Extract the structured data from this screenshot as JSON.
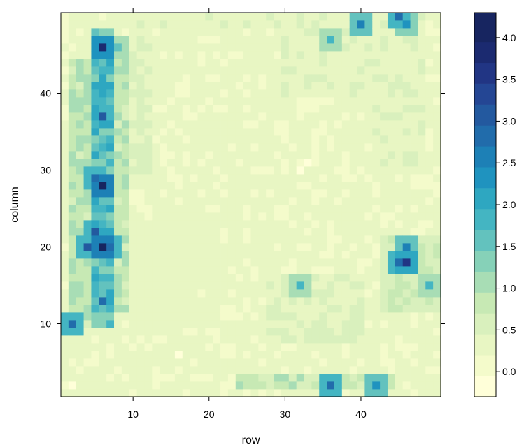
{
  "chart_data": {
    "type": "heatmap",
    "title": "",
    "xlabel": "row",
    "ylabel": "column",
    "xlim": [
      0.5,
      50.5
    ],
    "ylim": [
      0.5,
      50.5
    ],
    "x_ticks": [
      10,
      20,
      30,
      40
    ],
    "y_ticks": [
      10,
      20,
      30,
      40
    ],
    "colorbar": {
      "range": [
        -0.3,
        4.3
      ],
      "ticks": [
        0.0,
        0.5,
        1.0,
        1.5,
        2.0,
        2.5,
        3.0,
        3.5,
        4.0
      ],
      "tick_labels": [
        "0.0",
        "0.5",
        "1.0",
        "1.5",
        "2.0",
        "2.5",
        "3.0",
        "3.5",
        "4.0"
      ],
      "breaks": [
        -0.3,
        -0.05,
        0.2,
        0.45,
        0.7,
        0.95,
        1.2,
        1.45,
        1.7,
        1.95,
        2.2,
        2.45,
        2.7,
        2.95,
        3.2,
        3.45,
        3.7,
        3.95,
        4.3
      ],
      "colors": [
        "#ffffd9",
        "#f4fbcb",
        "#e8f6c3",
        "#d9f0bd",
        "#c7e9b4",
        "#a8ddb5",
        "#86d1b8",
        "#63c2be",
        "#44b5c2",
        "#2ea7c1",
        "#1f93bf",
        "#1d80b6",
        "#216cab",
        "#23599f",
        "#244694",
        "#213584",
        "#1b2a70",
        "#172560"
      ]
    },
    "grid": {
      "n_rows": 50,
      "n_cols": 50,
      "row_coordinate": "x",
      "column_coordinate": "y",
      "features": [
        {
          "kind": "band",
          "x": [
            2,
            4
          ],
          "y": [
            10,
            44
          ],
          "value": 1.2
        },
        {
          "kind": "band",
          "x": [
            5,
            7
          ],
          "y": [
            10,
            48
          ],
          "value": 2.2
        },
        {
          "kind": "band",
          "x": [
            8,
            9
          ],
          "y": [
            12,
            47
          ],
          "value": 1.1
        },
        {
          "kind": "band",
          "x": [
            10,
            12
          ],
          "y": [
            30,
            47
          ],
          "value": 0.6
        },
        {
          "kind": "band",
          "x": [
            1,
            4
          ],
          "y": [
            4,
            9
          ],
          "value": 0.3
        },
        {
          "kind": "band",
          "x": [
            9,
            48
          ],
          "y": [
            49,
            50
          ],
          "value": 0.5
        },
        {
          "kind": "band",
          "x": [
            30,
            41
          ],
          "y": [
            40,
            49
          ],
          "value": 0.5
        },
        {
          "kind": "band",
          "x": [
            42,
            48
          ],
          "y": [
            30,
            48
          ],
          "value": 0.5
        },
        {
          "kind": "band",
          "x": [
            43,
            50
          ],
          "y": [
            12,
            21
          ],
          "value": 0.9
        },
        {
          "kind": "band",
          "x": [
            24,
            44
          ],
          "y": [
            2,
            3
          ],
          "value": 1.0
        },
        {
          "kind": "band",
          "x": [
            28,
            40
          ],
          "y": [
            8,
            16
          ],
          "value": 0.6
        },
        {
          "kind": "band",
          "x": [
            10,
            20
          ],
          "y": [
            10,
            24
          ],
          "value": 0.35
        },
        {
          "kind": "spot",
          "x": 6,
          "y": 20,
          "value": 4.3
        },
        {
          "kind": "spot",
          "x": 6,
          "y": 28,
          "value": 4.0
        },
        {
          "kind": "spot",
          "x": 6,
          "y": 46,
          "value": 3.7
        },
        {
          "kind": "spot",
          "x": 5,
          "y": 22,
          "value": 3.1
        },
        {
          "kind": "spot",
          "x": 4,
          "y": 20,
          "value": 3.0
        },
        {
          "kind": "spot",
          "x": 7,
          "y": 20,
          "value": 2.8
        },
        {
          "kind": "spot",
          "x": 6,
          "y": 37,
          "value": 3.0
        },
        {
          "kind": "spot",
          "x": 5,
          "y": 29,
          "value": 2.9
        },
        {
          "kind": "spot",
          "x": 6,
          "y": 13,
          "value": 2.7
        },
        {
          "kind": "spot",
          "x": 2,
          "y": 10,
          "value": 2.8
        },
        {
          "kind": "spot",
          "x": 46,
          "y": 18,
          "value": 3.5
        },
        {
          "kind": "spot",
          "x": 46,
          "y": 20,
          "value": 2.6
        },
        {
          "kind": "spot",
          "x": 45,
          "y": 18,
          "value": 2.8
        },
        {
          "kind": "spot",
          "x": 40,
          "y": 49,
          "value": 2.6
        },
        {
          "kind": "spot",
          "x": 45,
          "y": 50,
          "value": 2.9
        },
        {
          "kind": "spot",
          "x": 46,
          "y": 49,
          "value": 2.2
        },
        {
          "kind": "spot",
          "x": 36,
          "y": 2,
          "value": 2.8
        },
        {
          "kind": "spot",
          "x": 42,
          "y": 2,
          "value": 2.4
        },
        {
          "kind": "spot",
          "x": 32,
          "y": 15,
          "value": 1.9
        },
        {
          "kind": "spot",
          "x": 49,
          "y": 15,
          "value": 1.8
        },
        {
          "kind": "spot",
          "x": 36,
          "y": 47,
          "value": 1.8
        },
        {
          "kind": "spot",
          "x": 8,
          "y": 46,
          "value": 1.6
        },
        {
          "kind": "spot",
          "x": 33,
          "y": 31,
          "value": -0.2
        },
        {
          "kind": "spot",
          "x": 32,
          "y": 30,
          "value": -0.1
        },
        {
          "kind": "spot",
          "x": 16,
          "y": 6,
          "value": -0.1
        },
        {
          "kind": "spot",
          "x": 2,
          "y": 2,
          "value": -0.2
        }
      ]
    }
  }
}
